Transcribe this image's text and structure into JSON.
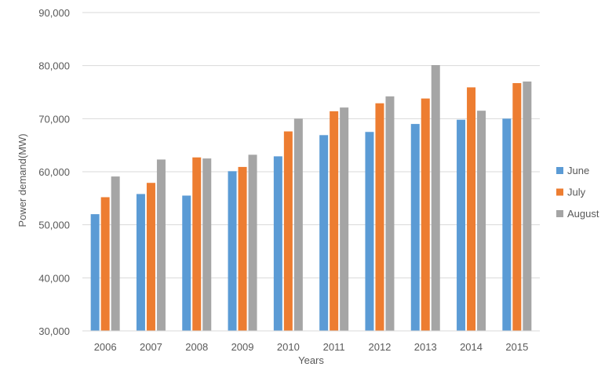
{
  "chart_data": {
    "type": "bar",
    "xlabel": "Years",
    "ylabel": "Power demand(MW)",
    "ylim": [
      30000,
      90000
    ],
    "yticks": [
      "30,000",
      "40,000",
      "50,000",
      "60,000",
      "70,000",
      "80,000",
      "90,000"
    ],
    "ytick_values": [
      30000,
      40000,
      50000,
      60000,
      70000,
      80000,
      90000
    ],
    "categories": [
      "2006",
      "2007",
      "2008",
      "2009",
      "2010",
      "2011",
      "2012",
      "2013",
      "2014",
      "2015"
    ],
    "grid": true,
    "legend_position": "right",
    "series": [
      {
        "name": "June",
        "color": "#5B9BD5",
        "values": [
          52000,
          55800,
          55500,
          60100,
          62900,
          66900,
          67500,
          69000,
          69800,
          70000
        ]
      },
      {
        "name": "July",
        "color": "#ED7D31",
        "values": [
          55200,
          57900,
          62700,
          60900,
          67600,
          71400,
          72900,
          73800,
          75900,
          76700
        ]
      },
      {
        "name": "August",
        "color": "#A5A5A5",
        "values": [
          59100,
          62300,
          62500,
          63200,
          70000,
          72100,
          74200,
          80100,
          71500,
          77000
        ]
      }
    ]
  }
}
